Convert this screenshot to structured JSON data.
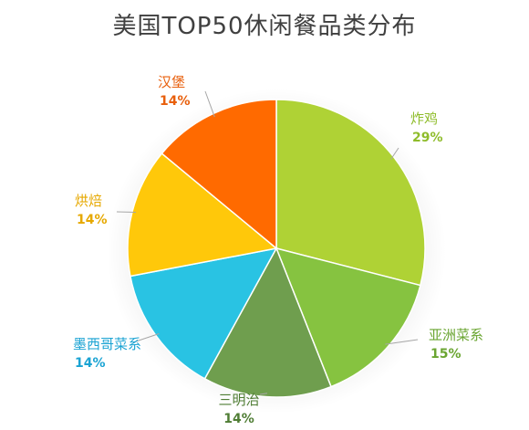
{
  "chart_data": {
    "type": "pie",
    "title": "美国TOP50休闲餐品类分布",
    "start_angle_deg": 0,
    "direction": "clockwise",
    "legend": "none",
    "slices": [
      {
        "label": "炸鸡",
        "value": 29,
        "value_label": "29%",
        "color": "#afd235",
        "label_color": "#8fbc2b"
      },
      {
        "label": "亚洲菜系",
        "value": 15,
        "value_label": "15%",
        "color": "#86c340",
        "label_color": "#6aa531"
      },
      {
        "label": "三明治",
        "value": 14,
        "value_label": "14%",
        "color": "#6f9e4e",
        "label_color": "#4f7d34"
      },
      {
        "label": "墨西哥菜系",
        "value": 14,
        "value_label": "14%",
        "color": "#29c3e3",
        "label_color": "#1aa3d3"
      },
      {
        "label": "烘焙",
        "value": 14,
        "value_label": "14%",
        "color": "#ffc80a",
        "label_color": "#e6a800"
      },
      {
        "label": "汉堡",
        "value": 14,
        "value_label": "14%",
        "color": "#ff6a00",
        "label_color": "#e85f0c"
      }
    ]
  }
}
